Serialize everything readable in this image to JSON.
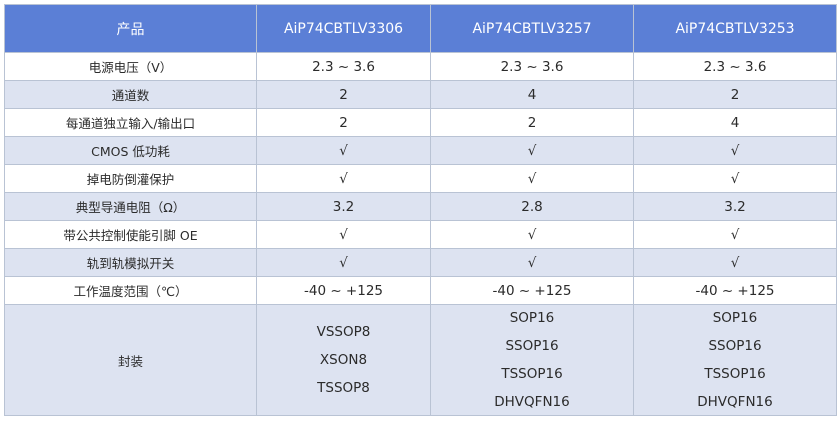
{
  "table": {
    "headers": [
      "产品",
      "AiP74CBTLV3306",
      "AiP74CBTLV3257",
      "AiP74CBTLV3253"
    ],
    "rows": [
      {
        "label": "电源电压（V）",
        "values": [
          "2.3 ~ 3.6",
          "2.3 ~ 3.6",
          "2.3 ~ 3.6"
        ]
      },
      {
        "label": "通道数",
        "values": [
          "2",
          "4",
          "2"
        ]
      },
      {
        "label": "每通道独立输入/输出口",
        "values": [
          "2",
          "2",
          "4"
        ]
      },
      {
        "label": "CMOS 低功耗",
        "values": [
          "√",
          "√",
          "√"
        ]
      },
      {
        "label": "掉电防倒灌保护",
        "values": [
          "√",
          "√",
          "√"
        ]
      },
      {
        "label": "典型导通电阻（Ω）",
        "values": [
          "3.2",
          "2.8",
          "3.2"
        ]
      },
      {
        "label": "带公共控制使能引脚 OE",
        "values": [
          "√",
          "√",
          "√"
        ]
      },
      {
        "label": "轨到轨模拟开关",
        "values": [
          "√",
          "√",
          "√"
        ]
      },
      {
        "label": "工作温度范围（℃）",
        "values": [
          "-40 ~ +125",
          "-40 ~ +125",
          "-40 ~ +125"
        ]
      }
    ],
    "package": {
      "label": "封装",
      "values": [
        [
          "VSSOP8",
          "XSON8",
          "TSSOP8"
        ],
        [
          "SOP16",
          "SSOP16",
          "TSSOP16",
          "DHVQFN16"
        ],
        [
          "SOP16",
          "SSOP16",
          "TSSOP16",
          "DHVQFN16"
        ]
      ]
    }
  }
}
